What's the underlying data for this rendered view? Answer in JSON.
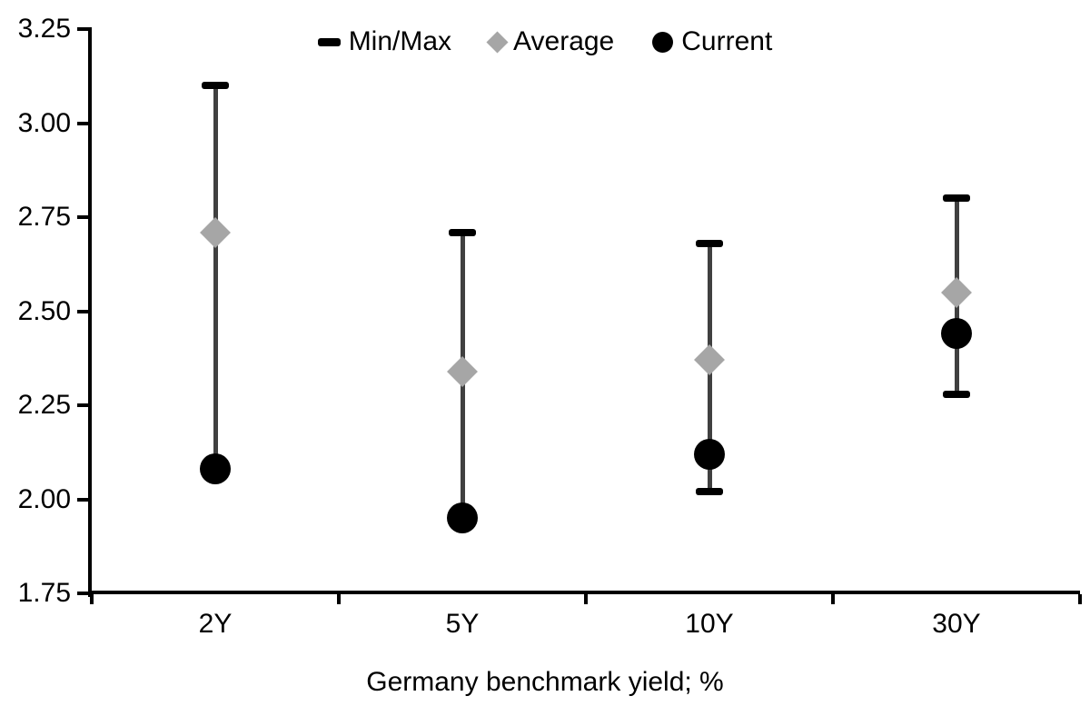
{
  "chart_data": {
    "type": "scatter",
    "subtype": "min-max-range-with-markers",
    "title": "",
    "xlabel": "Germany benchmark yield; %",
    "ylabel": "",
    "ylim": [
      1.75,
      3.25
    ],
    "yticks": [
      "3.25",
      "3.00",
      "2.75",
      "2.50",
      "2.25",
      "2.00",
      "1.75"
    ],
    "ytick_values": [
      3.25,
      3.0,
      2.75,
      2.5,
      2.25,
      2.0,
      1.75
    ],
    "categories": [
      "2Y",
      "5Y",
      "10Y",
      "30Y"
    ],
    "series": [
      {
        "name": "Min/Max",
        "marker": "dash",
        "color": "#000000",
        "max": [
          3.1,
          2.71,
          2.68,
          2.8
        ],
        "min": [
          2.08,
          1.95,
          2.02,
          2.28
        ]
      },
      {
        "name": "Average",
        "marker": "diamond",
        "color": "#a6a6a6",
        "values": [
          2.71,
          2.34,
          2.37,
          2.55
        ]
      },
      {
        "name": "Current",
        "marker": "circle",
        "color": "#000000",
        "values": [
          2.08,
          1.95,
          2.12,
          2.44
        ]
      }
    ],
    "legend_position": "top-center",
    "grid": false,
    "axis_color": "#000000",
    "range_line_color": "#404040",
    "background": "#ffffff"
  }
}
